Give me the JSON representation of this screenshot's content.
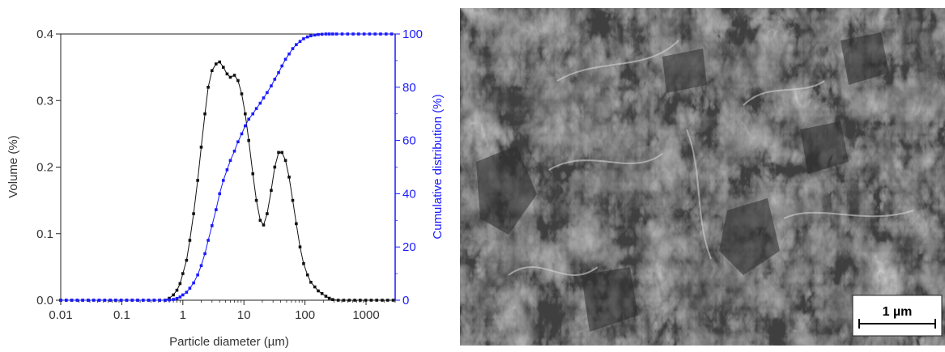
{
  "chart_data": {
    "type": "line",
    "xlabel": "Particle diameter (µm)",
    "ylabel": "Volume (%)",
    "y2label": "Cumulative distribution (%)",
    "xscale": "log",
    "xlim": [
      0.01,
      3000
    ],
    "ylim": [
      0,
      0.4
    ],
    "y2lim": [
      0,
      100
    ],
    "x_ticks": [
      "0.01",
      "0.1",
      "1",
      "10",
      "100",
      "1000"
    ],
    "x_tick_values": [
      0.01,
      0.1,
      1,
      10,
      100,
      1000
    ],
    "y_ticks": [
      "0.0",
      "0.1",
      "0.2",
      "0.3",
      "0.4"
    ],
    "y_tick_values": [
      0,
      0.1,
      0.2,
      0.3,
      0.4
    ],
    "y2_ticks": [
      "0",
      "20",
      "40",
      "60",
      "80",
      "100"
    ],
    "y2_tick_values": [
      0,
      20,
      40,
      60,
      80,
      100
    ],
    "grid": false,
    "series": [
      {
        "axis": "left",
        "color": "#111111",
        "x": [
          0.6,
          0.7,
          0.8,
          0.9,
          1.0,
          1.15,
          1.3,
          1.5,
          1.75,
          2.0,
          2.3,
          2.6,
          3.0,
          3.5,
          4.0,
          4.6,
          5.3,
          6.0,
          7.0,
          8.0,
          9.2,
          10.5,
          12.0,
          14.0,
          16.0,
          18.5,
          21.0,
          24.0,
          28.0,
          32.0,
          37.0,
          42.0,
          48.0,
          55.0,
          63.0,
          72.0,
          83.0,
          95.0,
          110.0,
          125.0,
          145.0,
          165.0,
          190.0,
          220.0,
          250.0,
          285.0
        ],
        "y": [
          0.003,
          0.008,
          0.015,
          0.025,
          0.04,
          0.06,
          0.09,
          0.13,
          0.18,
          0.23,
          0.28,
          0.32,
          0.345,
          0.355,
          0.358,
          0.35,
          0.34,
          0.335,
          0.338,
          0.33,
          0.31,
          0.28,
          0.24,
          0.19,
          0.15,
          0.12,
          0.113,
          0.13,
          0.165,
          0.2,
          0.222,
          0.222,
          0.21,
          0.185,
          0.15,
          0.115,
          0.08,
          0.055,
          0.038,
          0.027,
          0.02,
          0.014,
          0.01,
          0.006,
          0.003,
          0.001
        ]
      },
      {
        "axis": "right",
        "color": "#1a1aff",
        "x": [
          0.6,
          0.7,
          0.8,
          0.9,
          1.0,
          1.15,
          1.3,
          1.5,
          1.75,
          2.0,
          2.3,
          2.6,
          3.0,
          3.5,
          4.0,
          4.6,
          5.3,
          6.0,
          7.0,
          8.0,
          9.2,
          10.5,
          12.0,
          14.0,
          16.0,
          18.5,
          21.0,
          24.0,
          28.0,
          32.0,
          37.0,
          42.0,
          48.0,
          55.0,
          63.0,
          72.0,
          83.0,
          95.0,
          110.0,
          125.0,
          145.0,
          165.0,
          190.0,
          220.0,
          250.0,
          285.0,
          330.0
        ],
        "y": [
          0.1,
          0.3,
          0.7,
          1.2,
          2.0,
          3.0,
          4.5,
          6.5,
          9.5,
          13.0,
          17.5,
          22.5,
          28.0,
          34.0,
          40.0,
          45.0,
          49.0,
          52.5,
          56.0,
          59.5,
          62.5,
          65.5,
          68.0,
          70.0,
          72.0,
          74.0,
          76.0,
          78.0,
          80.5,
          83.0,
          85.5,
          88.0,
          90.5,
          92.5,
          94.5,
          96.0,
          97.2,
          98.2,
          98.9,
          99.3,
          99.6,
          99.8,
          99.9,
          100.0,
          100.0,
          100.0,
          100.0
        ]
      }
    ]
  },
  "sem_image": {
    "scale_bar_label": "1 µm"
  }
}
